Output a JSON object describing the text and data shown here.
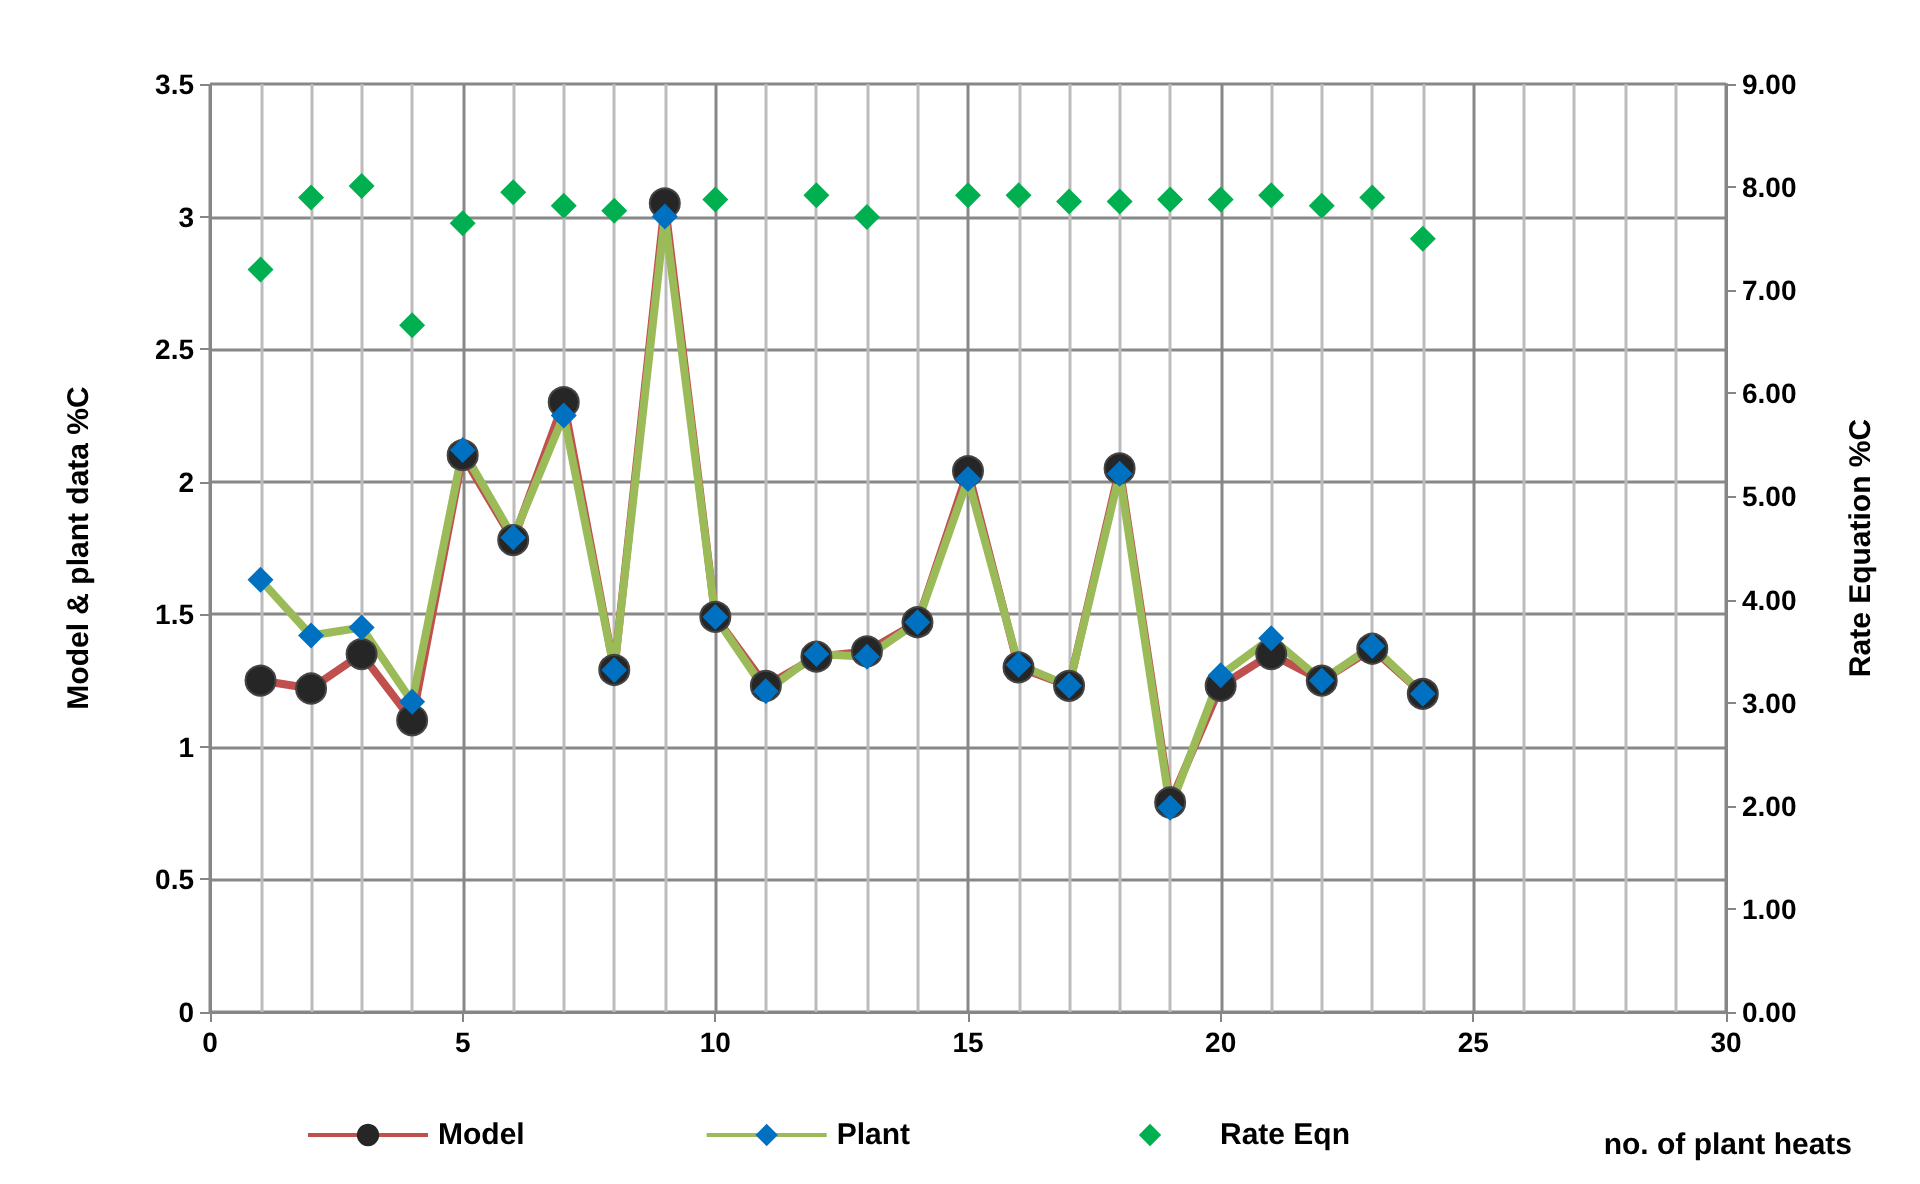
{
  "chart_data": {
    "type": "line",
    "xlabel": "no. of plant heats",
    "ylabel": "Model & plant data %C",
    "y2label": "Rate Equation %C",
    "xlim": [
      0,
      30
    ],
    "xticks": [
      0,
      5,
      10,
      15,
      20,
      25,
      30
    ],
    "ylim": [
      0,
      3.5
    ],
    "yticks": [
      0,
      0.5,
      1,
      1.5,
      2,
      2.5,
      3,
      3.5
    ],
    "y2lim": [
      0,
      9
    ],
    "y2ticks": [
      {
        "value": 0,
        "label": "0.00"
      },
      {
        "value": 1,
        "label": "1.00"
      },
      {
        "value": 2,
        "label": "2.00"
      },
      {
        "value": 3,
        "label": "3.00"
      },
      {
        "value": 4,
        "label": "4.00"
      },
      {
        "value": 5,
        "label": "5.00"
      },
      {
        "value": 6,
        "label": "6.00"
      },
      {
        "value": 7,
        "label": "7.00"
      },
      {
        "value": 8,
        "label": "8.00"
      },
      {
        "value": 9,
        "label": "9.00"
      }
    ],
    "grid": true,
    "legend": "bottom left",
    "series": [
      {
        "name": "Model",
        "color": "#c0504d",
        "marker": "circle",
        "x": [
          1,
          2,
          3,
          4,
          5,
          6,
          7,
          8,
          9,
          10,
          11,
          12,
          13,
          14,
          15,
          16,
          17,
          18,
          19,
          20,
          21,
          22,
          23,
          24
        ],
        "values": [
          1.25,
          1.22,
          1.35,
          1.1,
          2.1,
          1.78,
          2.3,
          1.29,
          3.05,
          1.49,
          1.23,
          1.34,
          1.36,
          1.47,
          2.04,
          1.3,
          1.23,
          2.05,
          0.79,
          1.23,
          1.35,
          1.25,
          1.37,
          1.2
        ]
      },
      {
        "name": "Plant",
        "color": "#9bbb59",
        "marker": "diamond",
        "x": [
          1,
          2,
          3,
          4,
          5,
          6,
          7,
          8,
          9,
          10,
          11,
          12,
          13,
          14,
          15,
          16,
          17,
          18,
          19,
          20,
          21,
          22,
          23,
          24
        ],
        "values": [
          1.63,
          1.42,
          1.45,
          1.17,
          2.12,
          1.79,
          2.25,
          1.29,
          3.0,
          1.49,
          1.21,
          1.35,
          1.34,
          1.47,
          2.01,
          1.31,
          1.23,
          2.03,
          0.77,
          1.27,
          1.41,
          1.25,
          1.38,
          1.2
        ]
      },
      {
        "name": "Rate Eqn",
        "type": "scatter",
        "axis": "y2",
        "color": "#00b050",
        "marker": "diamond",
        "x": [
          1,
          2,
          3,
          4,
          5,
          6,
          7,
          8,
          10,
          12,
          13,
          15,
          16,
          17,
          18,
          19,
          20,
          21,
          22,
          23,
          24
        ],
        "values": [
          7.2,
          7.9,
          8.01,
          6.66,
          7.65,
          7.95,
          7.82,
          7.77,
          7.88,
          7.92,
          7.71,
          7.92,
          7.92,
          7.86,
          7.86,
          7.88,
          7.88,
          7.92,
          7.82,
          7.9,
          7.5
        ]
      }
    ]
  }
}
